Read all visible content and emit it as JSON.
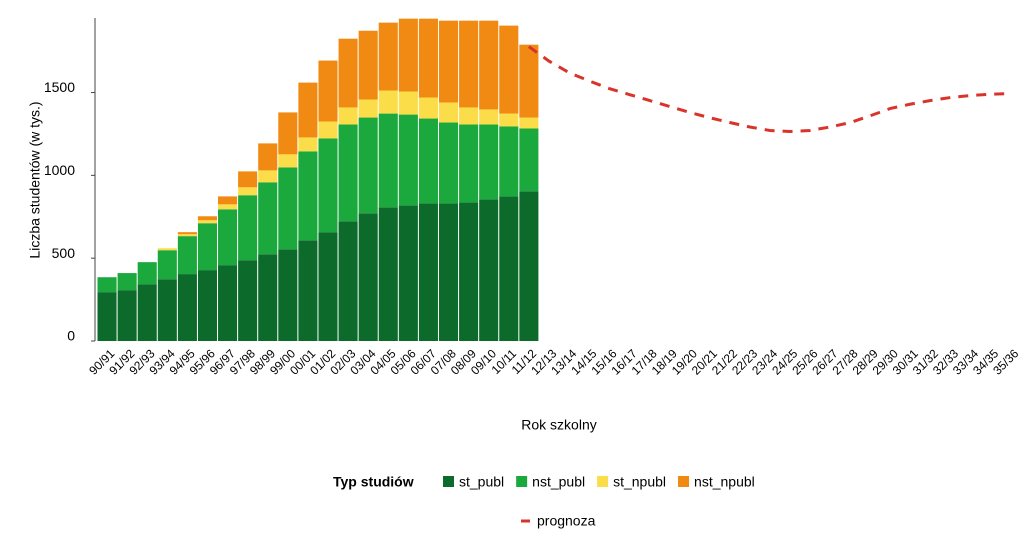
{
  "chart_data": {
    "type": "bar",
    "stacked": true,
    "ylabel": "Liczba studentów (w tys.)",
    "xlabel": "Rok szkolny",
    "legend_title": "Typ studiów",
    "legend": "bottom",
    "categories": [
      "90/91",
      "91/92",
      "92/93",
      "93/94",
      "94/95",
      "95/96",
      "96/97",
      "97/98",
      "98/99",
      "99/00",
      "00/01",
      "01/02",
      "02/03",
      "03/04",
      "04/05",
      "05/06",
      "06/07",
      "07/08",
      "08/09",
      "09/10",
      "10/11",
      "11/12",
      "12/13",
      "13/14",
      "14/15",
      "15/16",
      "16/17",
      "17/18",
      "18/19",
      "19/20",
      "20/21",
      "21/22",
      "22/23",
      "23/24",
      "24/25",
      "25/26",
      "26/27",
      "27/28",
      "28/29",
      "29/30",
      "30/31",
      "31/32",
      "32/33",
      "33/34",
      "34/35",
      "35/36"
    ],
    "ylim": [
      0,
      1950
    ],
    "yticks": [
      0,
      500,
      1000,
      1500
    ],
    "series": [
      {
        "name": "st_publ",
        "color": "#0c6b2b",
        "values": [
          295,
          307,
          343,
          373,
          404,
          428,
          458,
          488,
          524,
          554,
          608,
          657,
          723,
          771,
          807,
          819,
          831,
          831,
          837,
          855,
          873,
          904,
          null,
          null,
          null,
          null,
          null,
          null,
          null,
          null,
          null,
          null,
          null,
          null,
          null,
          null,
          null,
          null,
          null,
          null,
          null,
          null,
          null,
          null,
          null,
          null
        ]
      },
      {
        "name": "nst_publ",
        "color": "#1ba83d",
        "values": [
          90,
          103,
          133,
          175,
          229,
          283,
          337,
          392,
          434,
          494,
          537,
          566,
          584,
          578,
          566,
          548,
          512,
          488,
          470,
          452,
          422,
          379,
          null,
          null,
          null,
          null,
          null,
          null,
          null,
          null,
          null,
          null,
          null,
          null,
          null,
          null,
          null,
          null,
          null,
          null,
          null,
          null,
          null,
          null,
          null,
          null
        ]
      },
      {
        "name": "st_npubl",
        "color": "#fbdd4a",
        "values": [
          0,
          0,
          0,
          12,
          12,
          18,
          30,
          48,
          72,
          79,
          84,
          102,
          103,
          109,
          139,
          139,
          127,
          121,
          103,
          91,
          78,
          66,
          null,
          null,
          null,
          null,
          null,
          null,
          null,
          null,
          null,
          null,
          null,
          null,
          null,
          null,
          null,
          null,
          null,
          null,
          null,
          null,
          null,
          null,
          null,
          null
        ]
      },
      {
        "name": "nst_npubl",
        "color": "#f08a12",
        "values": [
          0,
          0,
          0,
          0,
          12,
          24,
          48,
          96,
          163,
          253,
          331,
          368,
          415,
          415,
          410,
          440,
          476,
          494,
          524,
          536,
          531,
          440,
          null,
          null,
          null,
          null,
          null,
          null,
          null,
          null,
          null,
          null,
          null,
          null,
          null,
          null,
          null,
          null,
          null,
          null,
          null,
          null,
          null,
          null,
          null,
          null
        ]
      },
      {
        "name": "prognoza",
        "type": "line",
        "dashed": true,
        "color": "#d9342b",
        "values": [
          null,
          null,
          null,
          null,
          null,
          null,
          null,
          null,
          null,
          null,
          null,
          null,
          null,
          null,
          null,
          null,
          null,
          null,
          null,
          null,
          null,
          1777,
          1690,
          1620,
          1570,
          1524,
          1488,
          1452,
          1416,
          1380,
          1348,
          1319,
          1292,
          1271,
          1265,
          1271,
          1292,
          1319,
          1360,
          1404,
          1430,
          1452,
          1470,
          1482,
          1490,
          1494
        ]
      }
    ]
  }
}
